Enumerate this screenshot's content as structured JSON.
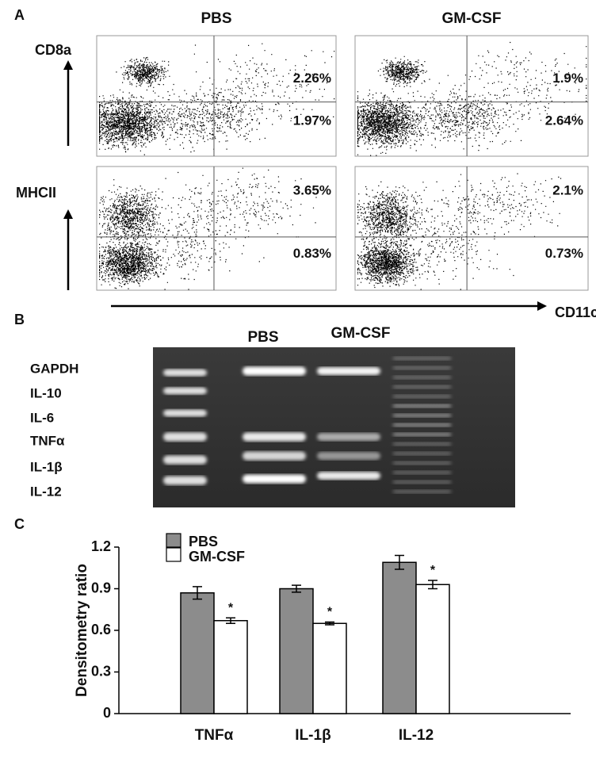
{
  "panel_a": {
    "label": "A",
    "columns": [
      "PBS",
      "GM-CSF"
    ],
    "rows": [
      {
        "marker": "CD8a",
        "percentages": [
          [
            "2.26%",
            "1.97%"
          ],
          [
            "1.9%",
            "2.64%"
          ]
        ]
      },
      {
        "marker": "MHCII",
        "percentages": [
          [
            "3.65%",
            "0.83%"
          ],
          [
            "2.1%",
            "0.73%"
          ]
        ]
      }
    ],
    "x_marker": "CD11c"
  },
  "panel_b": {
    "label": "B",
    "lanes": [
      "PBS",
      "GM-CSF"
    ],
    "genes": [
      "GAPDH",
      "IL-10",
      "IL-6",
      "TNFα",
      "IL-1β",
      "IL-12"
    ]
  },
  "panel_c": {
    "label": "C"
  },
  "chart_data": {
    "type": "bar",
    "ylabel": "Densitometry ratio",
    "categories": [
      "TNFα",
      "IL-1β",
      "IL-12"
    ],
    "series": [
      {
        "name": "PBS",
        "color": "#8c8c8c",
        "values": [
          0.87,
          0.9,
          1.09
        ],
        "errors": [
          0.045,
          0.025,
          0.05
        ]
      },
      {
        "name": "GM-CSF",
        "color": "#ffffff",
        "values": [
          0.67,
          0.65,
          0.93
        ],
        "errors": [
          0.02,
          0.01,
          0.03
        ],
        "significance": [
          "*",
          "*",
          "*"
        ]
      }
    ],
    "ylim": [
      0,
      1.2
    ],
    "yticks": [
      0,
      0.3,
      0.6,
      0.9,
      1.2
    ],
    "legend": "top-left"
  }
}
